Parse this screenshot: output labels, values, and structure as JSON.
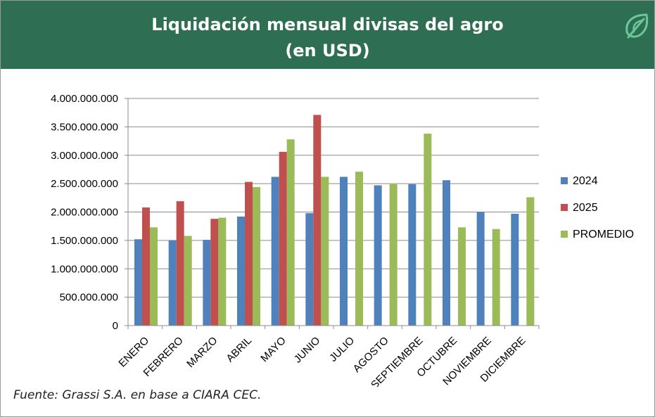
{
  "header": {
    "title": "Liquidación mensual divisas del agro",
    "subtitle": "(en USD)"
  },
  "footer": {
    "source": "Fuente: Grassi S.A.  en base a CIARA CEC."
  },
  "logo": {
    "icon": "leaf-icon",
    "color": "#6dc79a"
  },
  "colors": {
    "header_bg": "#2e6e52"
  },
  "chart_data": {
    "type": "bar",
    "categories": [
      "ENERO",
      "FEBRERO",
      "MARZO",
      "ABRIL",
      "MAYO",
      "JUNIO",
      "JULIO",
      "AGOSTO",
      "SEPTIEMBRE",
      "OCTUBRE",
      "NOVIEMBRE",
      "DICIEMBRE"
    ],
    "series": [
      {
        "name": "2024",
        "color": "#4f81bd",
        "values": [
          1520000000,
          1500000000,
          1510000000,
          1920000000,
          2620000000,
          1980000000,
          2620000000,
          2470000000,
          2490000000,
          2560000000,
          2000000000,
          1970000000
        ]
      },
      {
        "name": "2025",
        "color": "#c0504d",
        "values": [
          2080000000,
          2190000000,
          1880000000,
          2530000000,
          3060000000,
          3710000000,
          null,
          null,
          null,
          null,
          null,
          null
        ]
      },
      {
        "name": "PROMEDIO",
        "color": "#9bbb59",
        "values": [
          1730000000,
          1580000000,
          1900000000,
          2440000000,
          3280000000,
          2620000000,
          2710000000,
          2490000000,
          3380000000,
          1730000000,
          1700000000,
          2260000000
        ]
      }
    ],
    "yticks": [
      "0",
      "500.000.000",
      "1.000.000.000",
      "1.500.000.000",
      "2.000.000.000",
      "2.500.000.000",
      "3.000.000.000",
      "3.500.000.000",
      "4.000.000.000"
    ],
    "ylim": [
      0,
      4000000000
    ],
    "grid": true,
    "legend_position": "right"
  }
}
